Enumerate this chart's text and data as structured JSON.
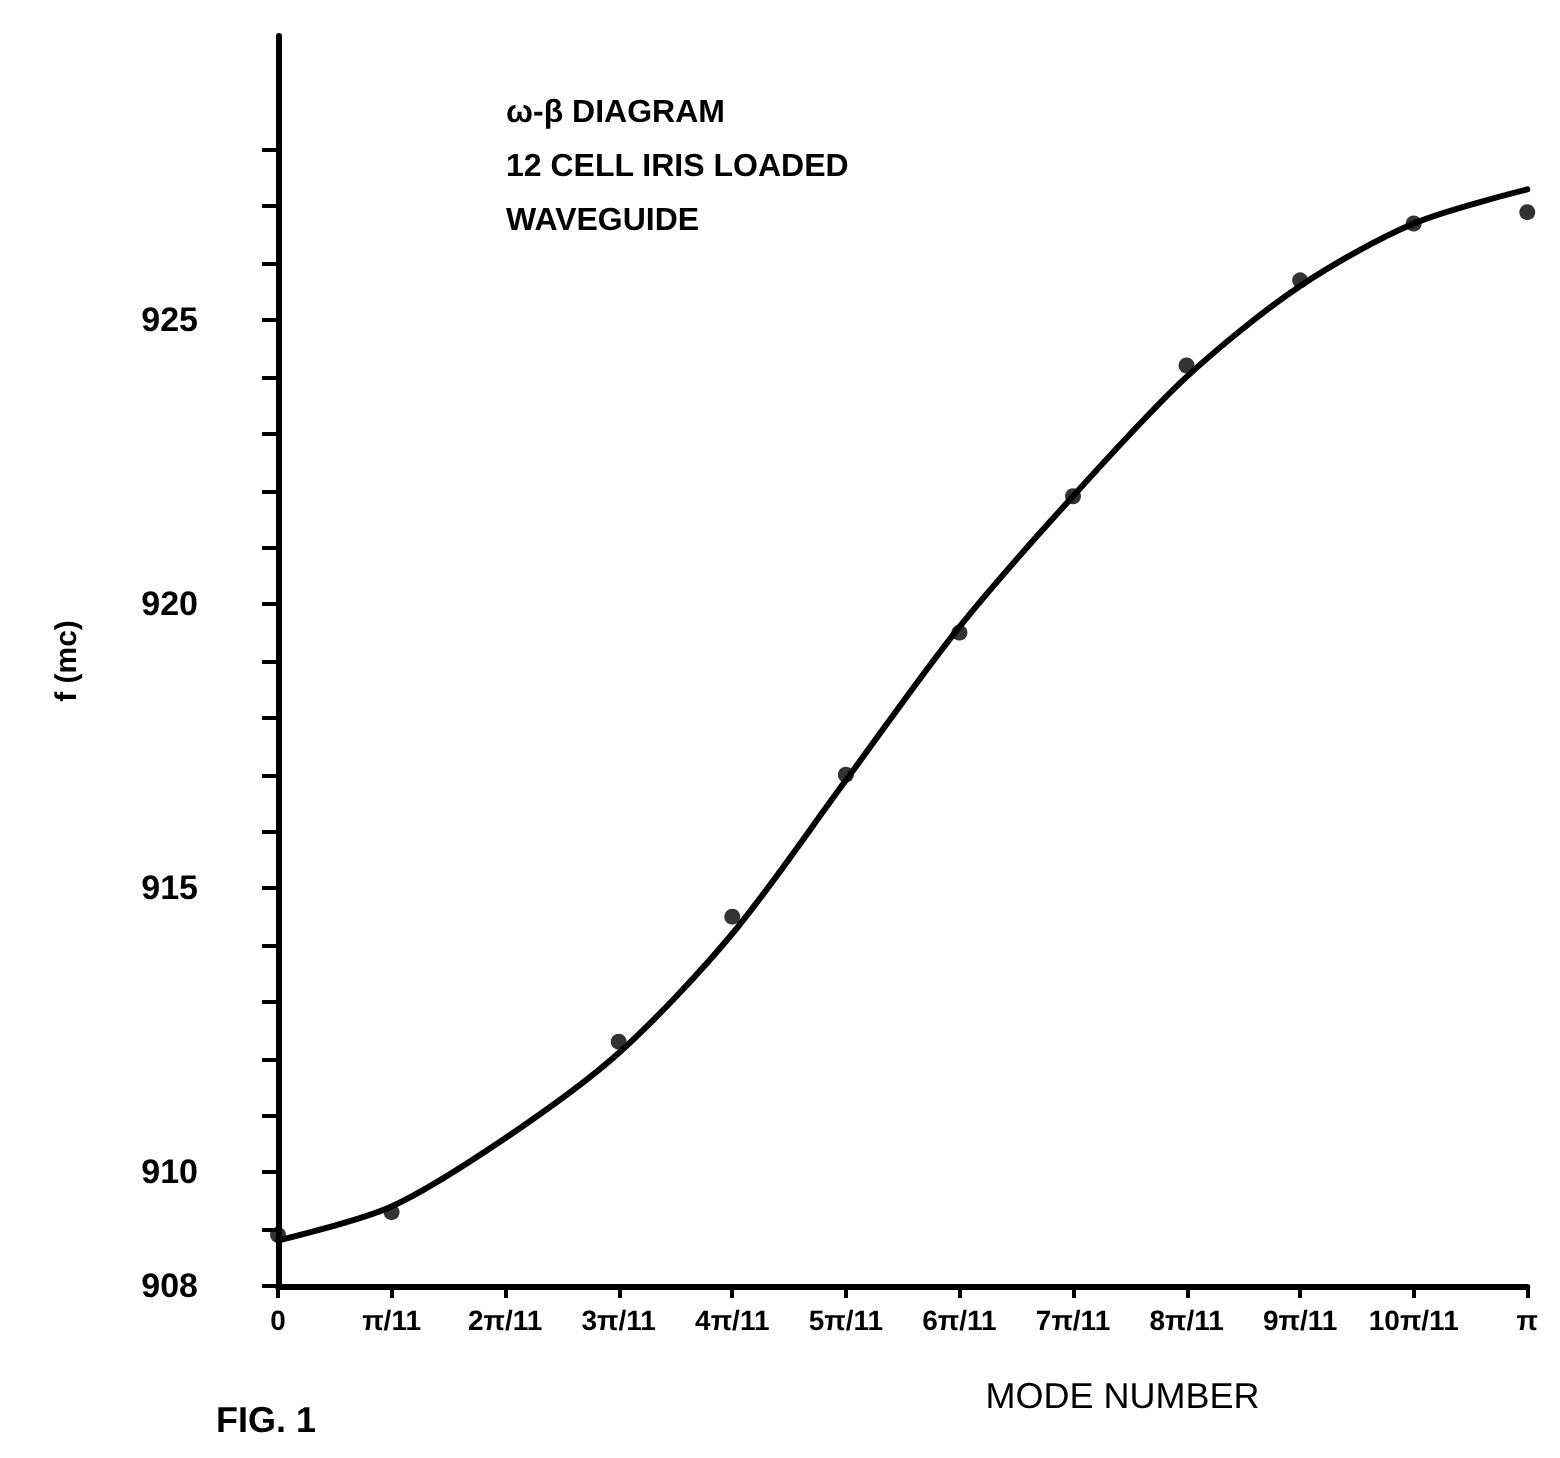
{
  "chart_data": {
    "type": "scatter",
    "title": "ω-β DIAGRAM\n12 CELL IRIS LOADED\nWAVEGUIDE",
    "xlabel": "MODE NUMBER",
    "ylabel": "f (mc)",
    "annotations": [
      "FIG. 1"
    ],
    "categories": [
      "0",
      "π/11",
      "2π/11",
      "3π/11",
      "4π/11",
      "5π/11",
      "6π/11",
      "7π/11",
      "8π/11",
      "9π/11",
      "10π/11",
      "π"
    ],
    "ylim": [
      908,
      930
    ],
    "yticks": [
      908,
      {
        "value": 909,
        "label": null
      },
      910,
      {
        "value": 911,
        "label": null
      },
      {
        "value": 912,
        "label": null
      },
      {
        "value": 913,
        "label": null
      },
      {
        "value": 914,
        "label": null
      },
      915,
      {
        "value": 916,
        "label": null
      },
      {
        "value": 917,
        "label": null
      },
      {
        "value": 918,
        "label": null
      },
      {
        "value": 919,
        "label": null
      },
      920,
      {
        "value": 921,
        "label": null
      },
      {
        "value": 922,
        "label": null
      },
      {
        "value": 923,
        "label": null
      },
      {
        "value": 924,
        "label": null
      },
      925,
      {
        "value": 926,
        "label": null
      },
      {
        "value": 927,
        "label": null
      },
      {
        "value": 928,
        "label": null
      }
    ],
    "grid": false,
    "marker": "circle",
    "series": [
      {
        "color": "#000000",
        "values": [
          908.9,
          909.3,
          null,
          912.3,
          914.5,
          917.0,
          919.5,
          921.9,
          924.2,
          925.7,
          926.7,
          926.9
        ]
      },
      {
        "type": "line",
        "color": "#000000",
        "marker": "none",
        "line_style": "solid",
        "values": [
          908.8,
          909.4,
          910.6,
          912.1,
          914.2,
          916.9,
          919.6,
          921.9,
          924.0,
          925.6,
          926.7,
          927.3
        ]
      }
    ]
  }
}
